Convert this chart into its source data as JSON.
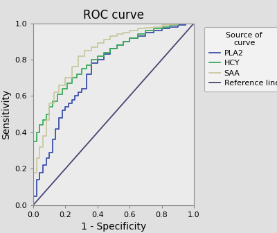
{
  "title": "ROC curve",
  "xlabel": "1 - Specificity",
  "ylabel": "Sensitivity",
  "xlim": [
    0.0,
    1.0
  ],
  "ylim": [
    0.0,
    1.0
  ],
  "xticks": [
    0.0,
    0.2,
    0.4,
    0.6,
    0.8,
    1.0
  ],
  "yticks": [
    0.0,
    0.2,
    0.4,
    0.6,
    0.8,
    1.0
  ],
  "fig_facecolor": "#e0e0e0",
  "plot_facecolor": "#ebebeb",
  "legend_title": "Source of\ncurve",
  "legend_labels": [
    "PLA2",
    "HCY",
    "SAA",
    "Reference line"
  ],
  "pla2_color": "#3b4fa8",
  "hcy_color": "#3aaa5a",
  "saa_color": "#c8c8a0",
  "ref_color": "#4a4472",
  "pla2_x": [
    0.0,
    0.0,
    0.02,
    0.02,
    0.04,
    0.04,
    0.06,
    0.06,
    0.08,
    0.08,
    0.1,
    0.1,
    0.12,
    0.12,
    0.14,
    0.14,
    0.16,
    0.16,
    0.18,
    0.18,
    0.2,
    0.2,
    0.22,
    0.22,
    0.24,
    0.24,
    0.26,
    0.26,
    0.28,
    0.28,
    0.3,
    0.3,
    0.33,
    0.33,
    0.36,
    0.36,
    0.4,
    0.4,
    0.44,
    0.44,
    0.48,
    0.48,
    0.52,
    0.52,
    0.56,
    0.56,
    0.6,
    0.6,
    0.65,
    0.65,
    0.7,
    0.7,
    0.75,
    0.75,
    0.8,
    0.8,
    0.85,
    0.85,
    0.9,
    0.9,
    0.95,
    0.95,
    1.0,
    1.0
  ],
  "pla2_y": [
    0.0,
    0.05,
    0.05,
    0.14,
    0.14,
    0.18,
    0.18,
    0.22,
    0.22,
    0.26,
    0.26,
    0.29,
    0.29,
    0.36,
    0.36,
    0.42,
    0.42,
    0.48,
    0.48,
    0.52,
    0.52,
    0.54,
    0.54,
    0.56,
    0.56,
    0.58,
    0.58,
    0.6,
    0.6,
    0.62,
    0.62,
    0.64,
    0.64,
    0.72,
    0.72,
    0.78,
    0.78,
    0.8,
    0.8,
    0.83,
    0.83,
    0.86,
    0.86,
    0.88,
    0.88,
    0.9,
    0.9,
    0.92,
    0.92,
    0.93,
    0.93,
    0.95,
    0.95,
    0.96,
    0.96,
    0.97,
    0.97,
    0.98,
    0.98,
    0.99,
    0.99,
    1.0,
    1.0,
    1.0
  ],
  "hcy_x": [
    0.0,
    0.0,
    0.02,
    0.02,
    0.04,
    0.04,
    0.06,
    0.06,
    0.08,
    0.08,
    0.1,
    0.1,
    0.12,
    0.12,
    0.15,
    0.15,
    0.18,
    0.18,
    0.21,
    0.21,
    0.24,
    0.24,
    0.27,
    0.27,
    0.3,
    0.3,
    0.33,
    0.33,
    0.36,
    0.36,
    0.4,
    0.4,
    0.44,
    0.44,
    0.48,
    0.48,
    0.52,
    0.52,
    0.56,
    0.56,
    0.6,
    0.6,
    0.65,
    0.65,
    0.7,
    0.7,
    0.75,
    0.75,
    0.8,
    0.8,
    0.85,
    0.85,
    0.9,
    0.9,
    0.95,
    0.95,
    1.0,
    1.0
  ],
  "hcy_y": [
    0.0,
    0.35,
    0.35,
    0.4,
    0.4,
    0.44,
    0.44,
    0.47,
    0.47,
    0.5,
    0.5,
    0.54,
    0.54,
    0.57,
    0.57,
    0.61,
    0.61,
    0.64,
    0.64,
    0.67,
    0.67,
    0.7,
    0.7,
    0.72,
    0.72,
    0.75,
    0.75,
    0.77,
    0.77,
    0.8,
    0.8,
    0.82,
    0.82,
    0.84,
    0.84,
    0.86,
    0.86,
    0.88,
    0.88,
    0.9,
    0.9,
    0.92,
    0.92,
    0.94,
    0.94,
    0.96,
    0.96,
    0.97,
    0.97,
    0.98,
    0.98,
    0.99,
    0.99,
    1.0,
    1.0,
    1.0,
    1.0,
    1.0
  ],
  "saa_x": [
    0.0,
    0.0,
    0.02,
    0.02,
    0.04,
    0.04,
    0.06,
    0.06,
    0.08,
    0.08,
    0.1,
    0.1,
    0.13,
    0.13,
    0.16,
    0.16,
    0.2,
    0.2,
    0.24,
    0.24,
    0.28,
    0.28,
    0.32,
    0.32,
    0.36,
    0.36,
    0.4,
    0.4,
    0.44,
    0.44,
    0.48,
    0.48,
    0.52,
    0.52,
    0.56,
    0.56,
    0.6,
    0.6,
    0.65,
    0.65,
    0.7,
    0.7,
    0.75,
    0.75,
    0.8,
    0.8,
    0.85,
    0.85,
    0.9,
    0.9,
    0.95,
    0.95,
    1.0,
    1.0
  ],
  "saa_y": [
    0.0,
    0.18,
    0.18,
    0.26,
    0.26,
    0.32,
    0.32,
    0.38,
    0.38,
    0.47,
    0.47,
    0.56,
    0.56,
    0.62,
    0.62,
    0.66,
    0.66,
    0.7,
    0.7,
    0.76,
    0.76,
    0.82,
    0.82,
    0.85,
    0.85,
    0.87,
    0.87,
    0.89,
    0.89,
    0.91,
    0.91,
    0.93,
    0.93,
    0.94,
    0.94,
    0.95,
    0.95,
    0.96,
    0.96,
    0.97,
    0.97,
    0.975,
    0.975,
    0.98,
    0.98,
    0.99,
    0.99,
    0.995,
    0.995,
    1.0,
    1.0,
    1.0,
    1.0,
    1.0
  ],
  "title_fontsize": 12,
  "label_fontsize": 10,
  "tick_fontsize": 8,
  "legend_fontsize": 8,
  "legend_title_fontsize": 8,
  "line_width": 1.3
}
